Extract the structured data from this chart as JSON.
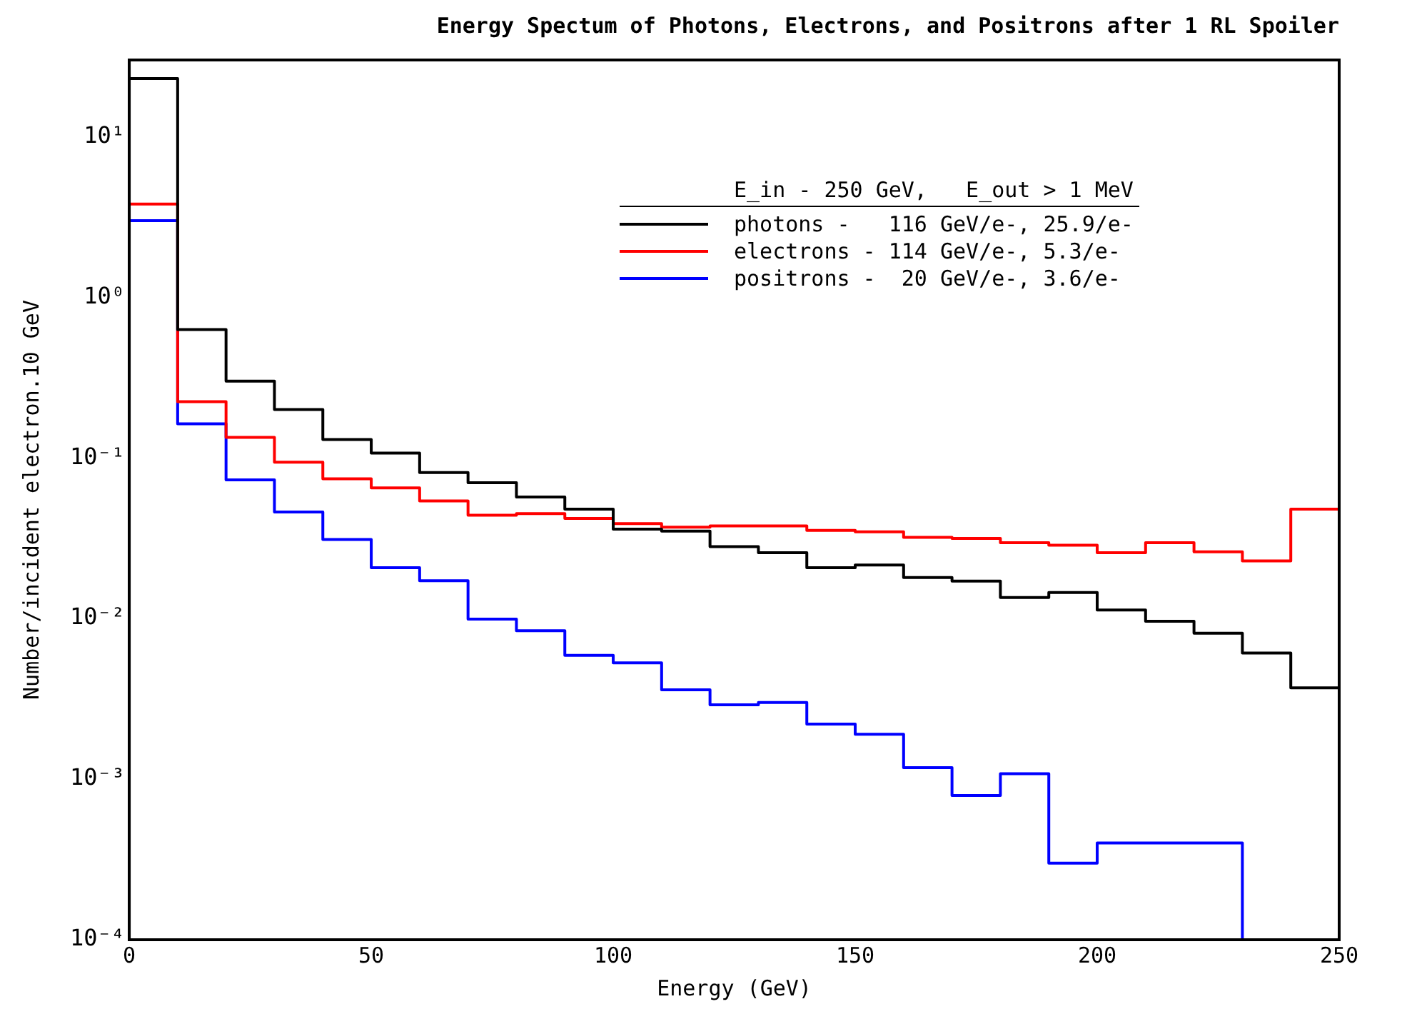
{
  "chart_data": {
    "type": "histogram",
    "title": "Energy Spectum of Photons, Electrons, and Positrons after 1 RL Spoiler",
    "xlabel": "Energy (GeV)",
    "ylabel": "Number/incident electron.10 GeV",
    "legend_title": "E_in - 250 GeV,   E_out > 1 MeV",
    "legend": "top right",
    "log": "y",
    "bins": [
      0,
      10,
      20,
      30,
      40,
      50,
      60,
      70,
      80,
      90,
      100,
      110,
      120,
      130,
      140,
      150,
      160,
      170,
      180,
      190,
      200,
      210,
      220,
      230,
      240,
      250
    ],
    "series": [
      {
        "name": "photons -   116 GeV/e-, 25.9/e-",
        "color": "#000000",
        "values": [
          23,
          0.63,
          0.3,
          0.2,
          0.13,
          0.107,
          0.081,
          0.07,
          0.057,
          0.048,
          0.036,
          0.035,
          0.028,
          0.0257,
          0.0207,
          0.0215,
          0.018,
          0.0171,
          0.0135,
          0.0145,
          0.0113,
          0.0096,
          0.0081,
          0.0061,
          0.0037
        ]
      },
      {
        "name": "electrons - 114 GeV/e-, 5.3/e-",
        "color": "#ff0000",
        "values": [
          3.8,
          0.224,
          0.134,
          0.094,
          0.074,
          0.065,
          0.054,
          0.044,
          0.045,
          0.042,
          0.039,
          0.037,
          0.0377,
          0.0377,
          0.0354,
          0.0346,
          0.032,
          0.0315,
          0.0296,
          0.0286,
          0.0257,
          0.0296,
          0.026,
          0.0228,
          0.048
        ]
      },
      {
        "name": "positrons -  20 GeV/e-, 3.6/e-",
        "color": "#0000ff",
        "values": [
          3.0,
          0.163,
          0.073,
          0.046,
          0.031,
          0.0207,
          0.0172,
          0.0099,
          0.0084,
          0.0059,
          0.0053,
          0.0036,
          0.0029,
          0.003,
          0.0022,
          0.0019,
          0.00118,
          0.00079,
          0.00108,
          0.0003,
          0.0004,
          0.0004,
          0.0004,
          0.0001,
          0.0001
        ]
      }
    ],
    "xlim": [
      0,
      250
    ],
    "xticks": [
      0,
      50,
      100,
      150,
      200,
      250
    ],
    "ylim": [
      0.0001,
      30
    ],
    "yticks": [
      {
        "value": 0.0001,
        "label": "10⁻⁴"
      },
      {
        "value": 0.001,
        "label": "10⁻³"
      },
      {
        "value": 0.01,
        "label": "10⁻²"
      },
      {
        "value": 0.1,
        "label": "10⁻¹"
      },
      {
        "value": 1,
        "label": "10⁰"
      },
      {
        "value": 10,
        "label": "10¹"
      }
    ],
    "grid": false
  }
}
